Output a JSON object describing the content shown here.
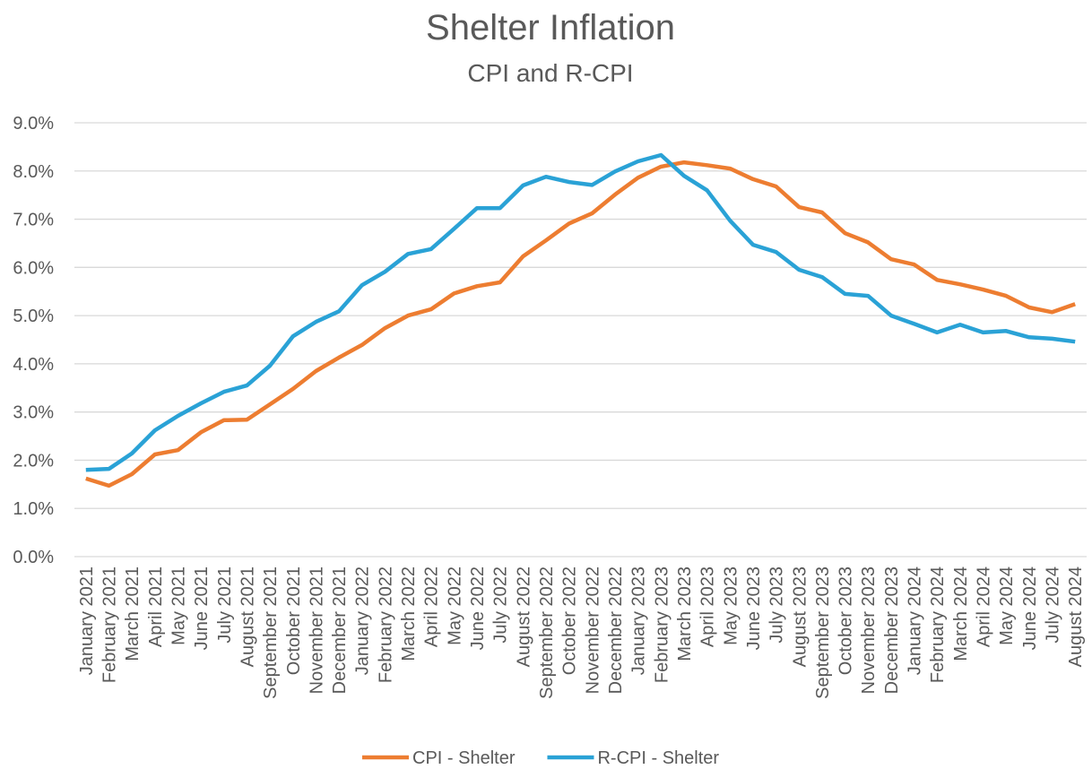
{
  "chart_data": {
    "type": "line",
    "title": "Shelter Inflation",
    "subtitle": "CPI and R-CPI",
    "categories": [
      "January 2021",
      "February 2021",
      "March 2021",
      "April 2021",
      "May 2021",
      "June 2021",
      "July 2021",
      "August 2021",
      "September 2021",
      "October 2021",
      "November 2021",
      "December 2021",
      "January 2022",
      "February 2022",
      "March 2022",
      "April 2022",
      "May 2022",
      "June 2022",
      "July 2022",
      "August 2022",
      "September 2022",
      "October 2022",
      "November 2022",
      "December 2022",
      "January 2023",
      "February 2023",
      "March 2023",
      "April 2023",
      "May 2023",
      "June 2023",
      "July 2023",
      "August 2023",
      "September 2023",
      "October 2023",
      "November 2023",
      "December 2023",
      "January 2024",
      "February 2024",
      "March 2024",
      "April 2024",
      "May 2024",
      "June 2024",
      "July 2024",
      "August 2024"
    ],
    "series": [
      {
        "name": "CPI - Shelter",
        "color": "#ed7d31",
        "values": [
          1.62,
          1.47,
          1.71,
          2.12,
          2.21,
          2.58,
          2.83,
          2.84,
          3.16,
          3.48,
          3.85,
          4.13,
          4.39,
          4.74,
          5.0,
          5.13,
          5.46,
          5.61,
          5.69,
          6.23,
          6.56,
          6.91,
          7.12,
          7.51,
          7.86,
          8.09,
          8.18,
          8.12,
          8.05,
          7.83,
          7.68,
          7.25,
          7.14,
          6.71,
          6.52,
          6.17,
          6.06,
          5.74,
          5.65,
          5.54,
          5.41,
          5.17,
          5.07,
          5.24
        ]
      },
      {
        "name": "R-CPI - Shelter",
        "color": "#2aa2d6",
        "values": [
          1.8,
          1.82,
          2.14,
          2.62,
          2.92,
          3.18,
          3.42,
          3.55,
          3.96,
          4.57,
          4.87,
          5.09,
          5.63,
          5.91,
          6.28,
          6.38,
          6.8,
          7.23,
          7.23,
          7.7,
          7.88,
          7.77,
          7.71,
          7.99,
          8.2,
          8.33,
          7.9,
          7.6,
          6.97,
          6.47,
          6.32,
          5.95,
          5.8,
          5.45,
          5.41,
          5.0,
          4.83,
          4.65,
          4.81,
          4.65,
          4.68,
          4.55,
          4.52,
          4.46
        ]
      }
    ],
    "ylim": [
      0,
      9
    ],
    "yticks": [
      {
        "value": 0,
        "label": "0.0%"
      },
      {
        "value": 1,
        "label": "1.0%"
      },
      {
        "value": 2,
        "label": "2.0%"
      },
      {
        "value": 3,
        "label": "3.0%"
      },
      {
        "value": 4,
        "label": "4.0%"
      },
      {
        "value": 5,
        "label": "5.0%"
      },
      {
        "value": 6,
        "label": "6.0%"
      },
      {
        "value": 7,
        "label": "7.0%"
      },
      {
        "value": 8,
        "label": "8.0%"
      },
      {
        "value": 9,
        "label": "9.0%"
      }
    ],
    "grid": true,
    "legend": "bottom"
  }
}
